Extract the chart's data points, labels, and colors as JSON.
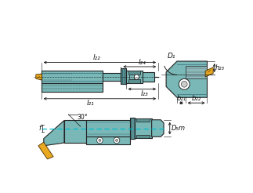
{
  "bg_color": "#ffffff",
  "tool_color": "#7ab8b8",
  "tool_mid": "#5a9090",
  "tool_dark": "#2a5a6a",
  "tool_outline": "#222222",
  "insert_color": "#e8a820",
  "insert_outline": "#4a3000",
  "dim_color": "#111111",
  "dash_color": "#00bbcc",
  "labels": {
    "l22": "l₂₂",
    "l24": "l₂₄",
    "l21": "l₂₁",
    "l23": "l₂₃",
    "b21": "b₂₁",
    "b22": "b₂₂",
    "h23": "h₂₃",
    "D1": "D₁",
    "D5m": "D₅m",
    "f": "f",
    "angle": "30°"
  }
}
